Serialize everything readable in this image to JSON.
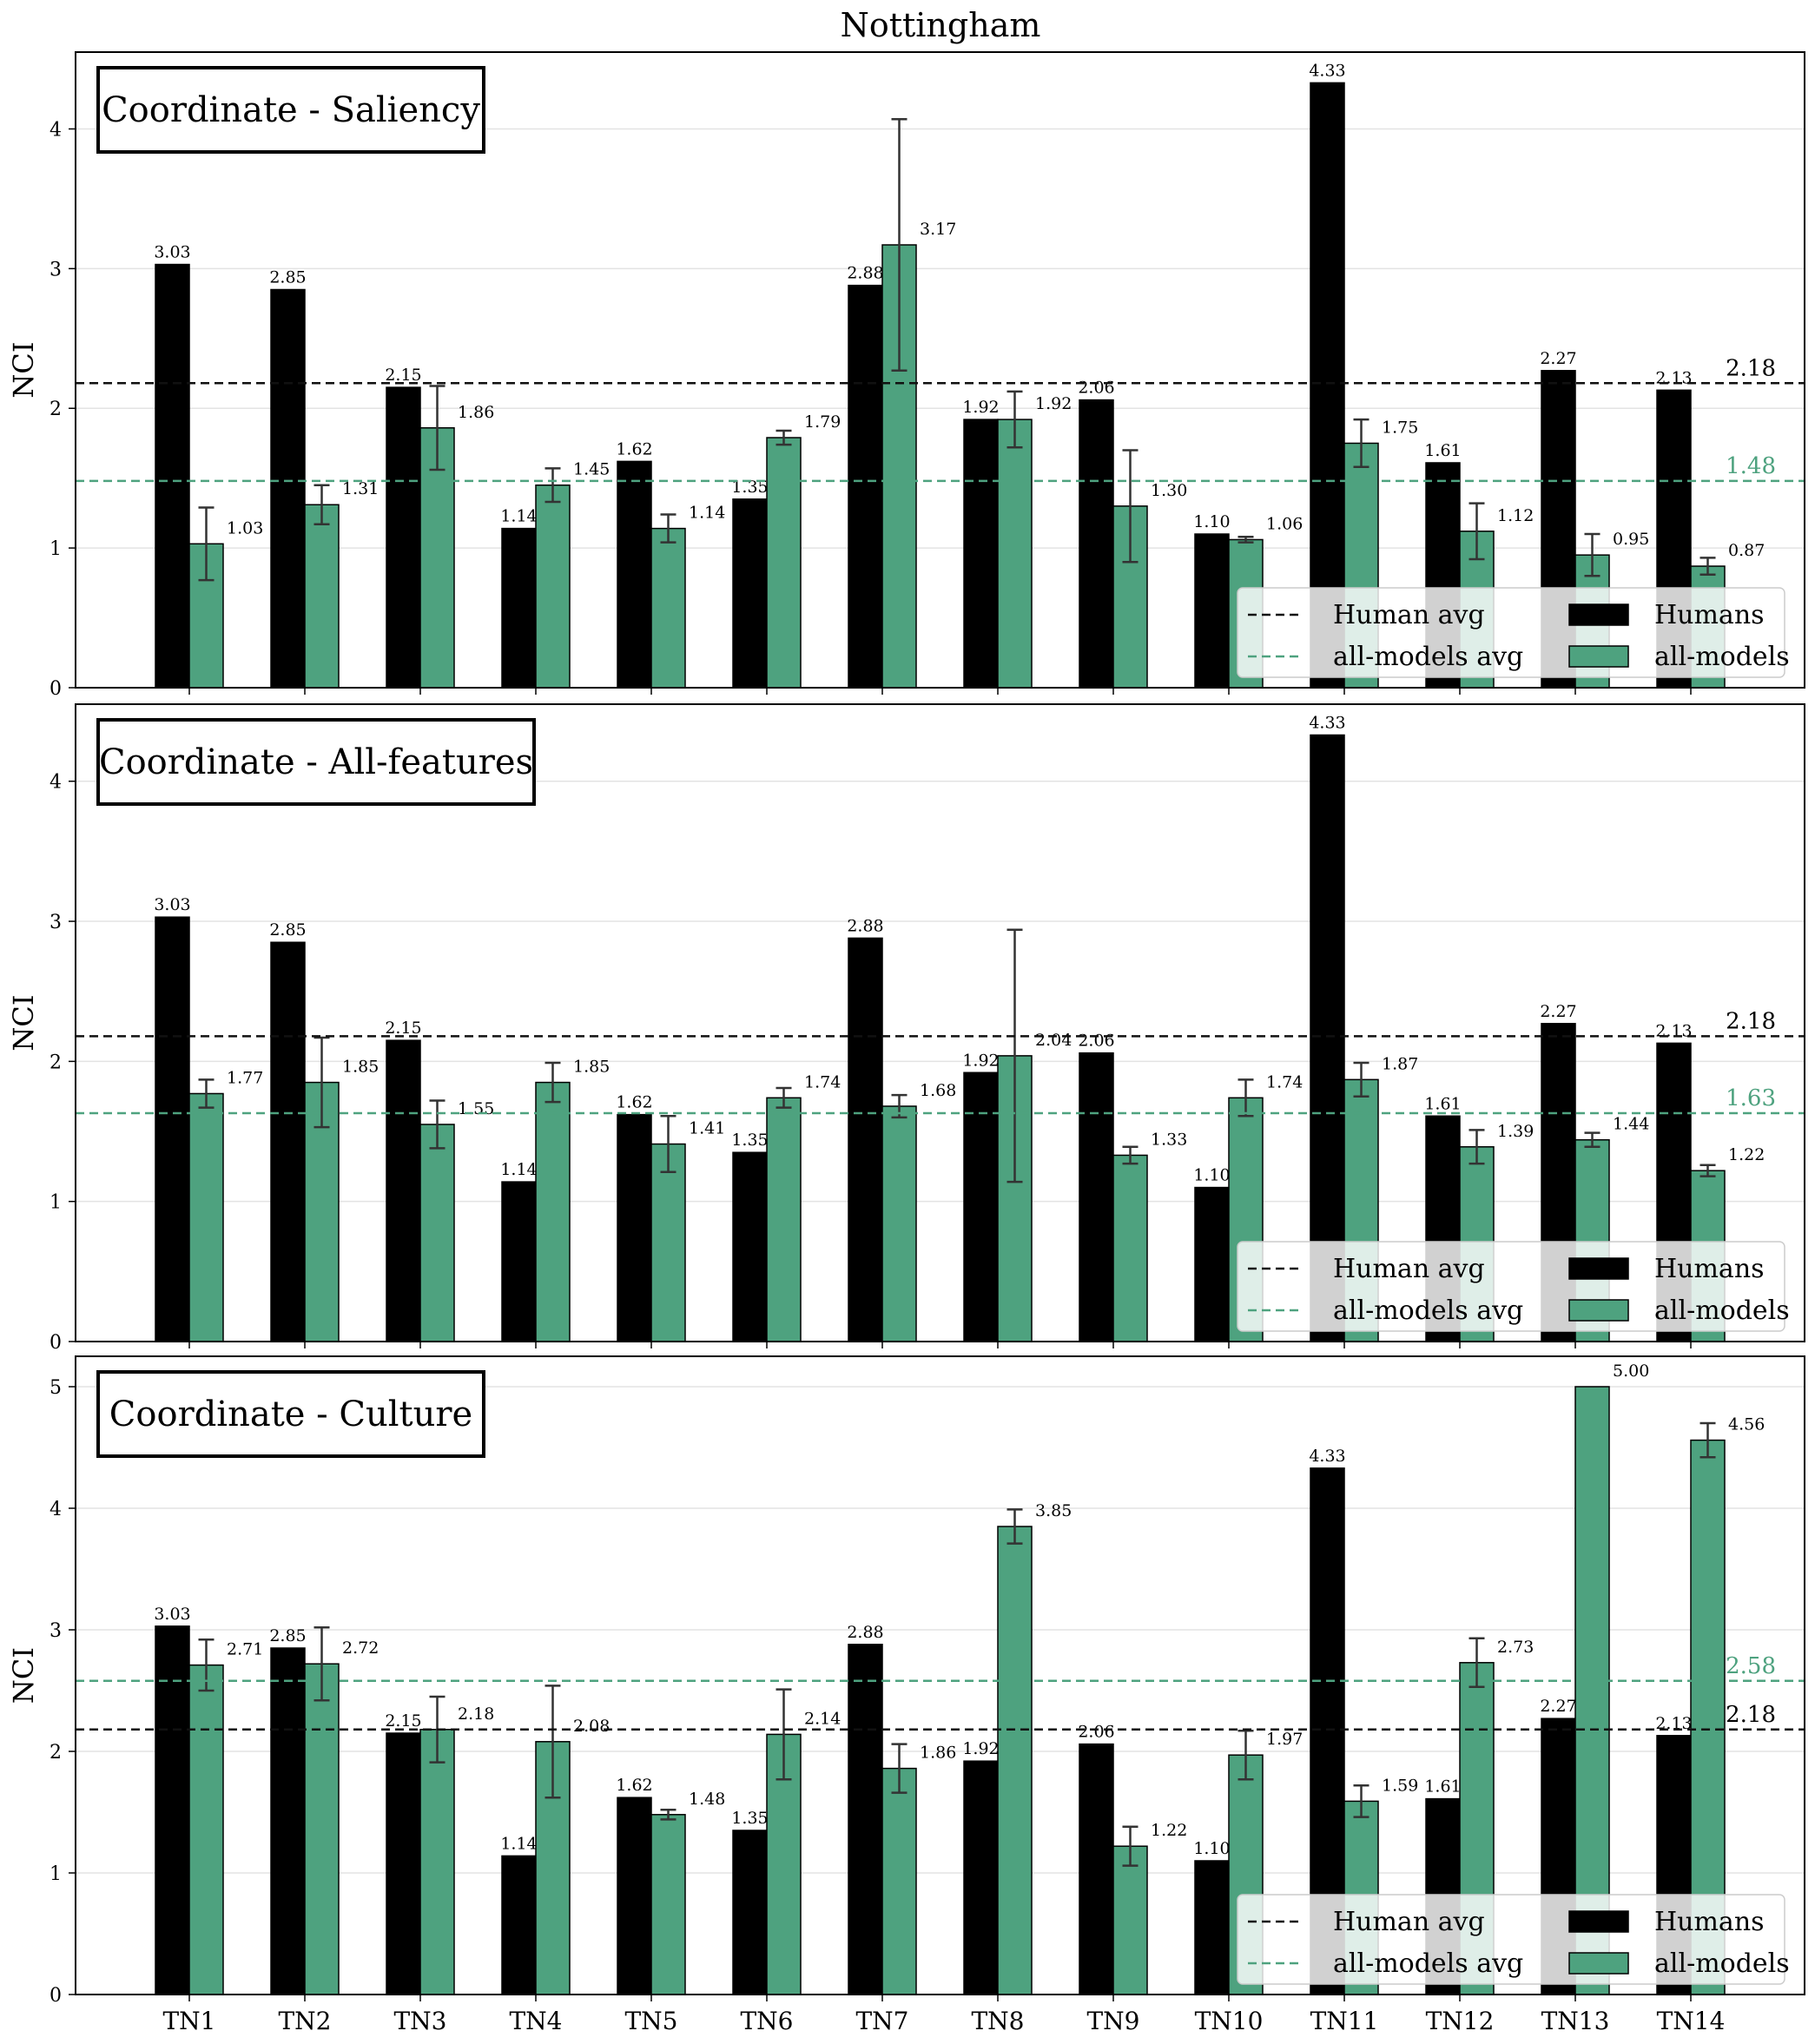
{
  "figure_title": "Nottingham",
  "colors": {
    "humans": "#000000",
    "models": "#4ea27f",
    "human_avg": "#111111",
    "models_avg": "#4ea27f",
    "grid": "#e3e3e3",
    "error": "#333333"
  },
  "legend": {
    "human_avg": "Human avg",
    "models_avg": "all-models avg",
    "humans": "Humans",
    "models": "all-models"
  },
  "chart_data": [
    {
      "type": "bar",
      "title": "Coordinate - Saliency",
      "ylabel": "NCI",
      "ylim": [
        0,
        4.55
      ],
      "yticks": [
        0,
        1,
        2,
        3,
        4
      ],
      "categories": [
        "TN1",
        "TN2",
        "TN3",
        "TN4",
        "TN5",
        "TN6",
        "TN7",
        "TN8",
        "TN9",
        "TN10",
        "TN11",
        "TN12",
        "TN13",
        "TN14"
      ],
      "series": [
        {
          "name": "Humans",
          "values": [
            3.03,
            2.85,
            2.15,
            1.14,
            1.62,
            1.35,
            2.88,
            1.92,
            2.06,
            1.1,
            4.33,
            1.61,
            2.27,
            2.13
          ],
          "labels": [
            "3.03",
            "2.85",
            "2.15",
            "1.14",
            "1.62",
            "1.35",
            "2.88",
            "1.92",
            "2.06",
            "1.10",
            "4.33",
            "1.61",
            "2.27",
            "2.13"
          ]
        },
        {
          "name": "all-models",
          "values": [
            1.03,
            1.31,
            1.86,
            1.45,
            1.14,
            1.79,
            3.17,
            1.92,
            1.3,
            1.06,
            1.75,
            1.12,
            0.95,
            0.87
          ],
          "errors": [
            0.26,
            0.14,
            0.3,
            0.12,
            0.1,
            0.05,
            0.9,
            0.2,
            0.4,
            0.02,
            0.17,
            0.2,
            0.15,
            0.06
          ],
          "labels": [
            "1.03",
            "1.31",
            "1.86",
            "1.45",
            "1.14",
            "1.79",
            "3.17",
            "1.92",
            "1.30",
            "1.06",
            "1.75",
            "1.12",
            "0.95",
            "0.87"
          ]
        }
      ],
      "human_avg": 2.18,
      "human_avg_label": "2.18",
      "models_avg": 1.48,
      "models_avg_label": "1.48"
    },
    {
      "type": "bar",
      "title": "Coordinate - All-features",
      "ylabel": "NCI",
      "ylim": [
        0,
        4.55
      ],
      "yticks": [
        0,
        1,
        2,
        3,
        4
      ],
      "categories": [
        "TN1",
        "TN2",
        "TN3",
        "TN4",
        "TN5",
        "TN6",
        "TN7",
        "TN8",
        "TN9",
        "TN10",
        "TN11",
        "TN12",
        "TN13",
        "TN14"
      ],
      "series": [
        {
          "name": "Humans",
          "values": [
            3.03,
            2.85,
            2.15,
            1.14,
            1.62,
            1.35,
            2.88,
            1.92,
            2.06,
            1.1,
            4.33,
            1.61,
            2.27,
            2.13
          ],
          "labels": [
            "3.03",
            "2.85",
            "2.15",
            "1.14",
            "1.62",
            "1.35",
            "2.88",
            "1.92",
            "2.06",
            "1.10",
            "4.33",
            "1.61",
            "2.27",
            "2.13"
          ]
        },
        {
          "name": "all-models",
          "values": [
            1.77,
            1.85,
            1.55,
            1.85,
            1.41,
            1.74,
            1.68,
            2.04,
            1.33,
            1.74,
            1.87,
            1.39,
            1.44,
            1.22
          ],
          "errors": [
            0.1,
            0.32,
            0.17,
            0.14,
            0.2,
            0.07,
            0.08,
            0.9,
            0.06,
            0.13,
            0.12,
            0.12,
            0.05,
            0.04
          ],
          "labels": [
            "1.77",
            "1.85",
            "1.55",
            "1.85",
            "1.41",
            "1.74",
            "1.68",
            "2.04",
            "1.33",
            "1.74",
            "1.87",
            "1.39",
            "1.44",
            "1.22"
          ]
        }
      ],
      "human_avg": 2.18,
      "human_avg_label": "2.18",
      "models_avg": 1.63,
      "models_avg_label": "1.63"
    },
    {
      "type": "bar",
      "title": "Coordinate - Culture",
      "ylabel": "NCI",
      "ylim": [
        0,
        5.25
      ],
      "yticks": [
        0,
        1,
        2,
        3,
        4,
        5
      ],
      "categories": [
        "TN1",
        "TN2",
        "TN3",
        "TN4",
        "TN5",
        "TN6",
        "TN7",
        "TN8",
        "TN9",
        "TN10",
        "TN11",
        "TN12",
        "TN13",
        "TN14"
      ],
      "series": [
        {
          "name": "Humans",
          "values": [
            3.03,
            2.85,
            2.15,
            1.14,
            1.62,
            1.35,
            2.88,
            1.92,
            2.06,
            1.1,
            4.33,
            1.61,
            2.27,
            2.13
          ],
          "labels": [
            "3.03",
            "2.85",
            "2.15",
            "1.14",
            "1.62",
            "1.35",
            "2.88",
            "1.92",
            "2.06",
            "1.10",
            "4.33",
            "1.61",
            "2.27",
            "2.13"
          ]
        },
        {
          "name": "all-models",
          "values": [
            2.71,
            2.72,
            2.18,
            2.08,
            1.48,
            2.14,
            1.86,
            3.85,
            1.22,
            1.97,
            1.59,
            2.73,
            5.0,
            4.56
          ],
          "errors": [
            0.21,
            0.3,
            0.27,
            0.46,
            0.04,
            0.37,
            0.2,
            0.14,
            0.16,
            0.2,
            0.13,
            0.2,
            0.0,
            0.14
          ],
          "labels": [
            "2.71",
            "2.72",
            "2.18",
            "2.08",
            "1.48",
            "2.14",
            "1.86",
            "3.85",
            "1.22",
            "1.97",
            "1.59",
            "2.73",
            "5.00",
            "4.56"
          ]
        }
      ],
      "human_avg": 2.18,
      "human_avg_label": "2.18",
      "models_avg": 2.58,
      "models_avg_label": "2.58"
    }
  ]
}
